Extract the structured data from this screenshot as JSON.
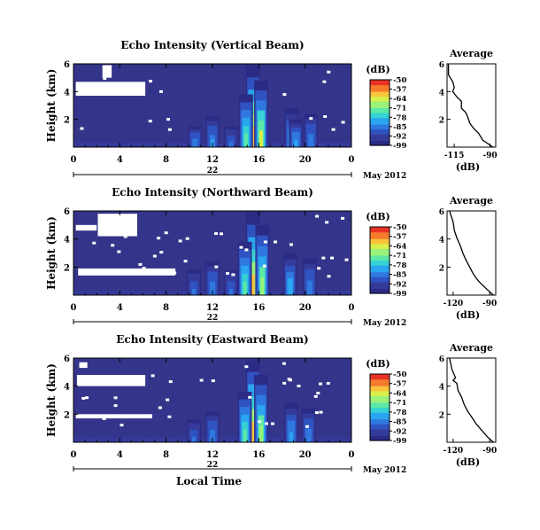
{
  "colors": {
    "background_field": "#34348a",
    "colormap": [
      "#2b2b86",
      "#353b9a",
      "#2f53c0",
      "#2f78df",
      "#2aa5ef",
      "#36d3d4",
      "#5ce8a6",
      "#9af27a",
      "#d9ef4c",
      "#f7c43a",
      "#f47a2c",
      "#e83326"
    ]
  },
  "chart_data": [
    {
      "type": "heatmap",
      "title": "Echo Intensity (Vertical Beam)",
      "ylabel": "Height (km)",
      "yticks": [
        "6",
        "4",
        "2"
      ],
      "ylim": [
        0,
        6
      ],
      "xlim": [
        0,
        24
      ],
      "xticks": [
        "0",
        "4",
        "8",
        "12",
        "16",
        "20",
        "0"
      ],
      "date_ticks": [
        "22"
      ],
      "date_label": "May 2012",
      "colorbar": {
        "unit": "(dB)",
        "ticks": [
          "-50",
          "-57",
          "-64",
          "-71",
          "-78",
          "-85",
          "-92",
          "-99"
        ],
        "range": [
          -99,
          -50
        ]
      },
      "average": {
        "title": "Average",
        "xlabel": "(dB)",
        "xticks": [
          "-115",
          "-90"
        ],
        "xlim": [
          -120,
          -86
        ],
        "yticks": [
          "6",
          "4",
          "2"
        ],
        "profile": [
          [
            -88,
            0
          ],
          [
            -95,
            0.5
          ],
          [
            -98,
            1
          ],
          [
            -101,
            1.3
          ],
          [
            -104,
            1.7
          ],
          [
            -106,
            2.3
          ],
          [
            -107,
            2.5
          ],
          [
            -110,
            2.8
          ],
          [
            -110,
            3.3
          ],
          [
            -113,
            3.6
          ],
          [
            -116,
            4.0
          ],
          [
            -115,
            4.3
          ],
          [
            -116,
            4.7
          ],
          [
            -119,
            5.2
          ],
          [
            -119,
            6
          ]
        ]
      },
      "echo_features": [
        {
          "x": 15.5,
          "intensity": -60,
          "top": 5.9
        },
        {
          "x": 16.2,
          "intensity": -66,
          "top": 4.8
        },
        {
          "x": 14.9,
          "intensity": -72,
          "top": 3.8
        },
        {
          "x": 18.8,
          "intensity": -78,
          "top": 2.8
        },
        {
          "x": 19.2,
          "intensity": -80,
          "top": 2.0
        },
        {
          "x": 12.0,
          "intensity": -82,
          "top": 2.2
        },
        {
          "x": 10.5,
          "intensity": -84,
          "top": 1.5
        },
        {
          "x": 20.5,
          "intensity": -84,
          "top": 2.4
        },
        {
          "x": 13.6,
          "intensity": -86,
          "top": 1.5
        }
      ]
    },
    {
      "type": "heatmap",
      "title": "Echo Intensity (Northward Beam)",
      "ylabel": "Height (km)",
      "yticks": [
        "6",
        "4",
        "2"
      ],
      "ylim": [
        0,
        6
      ],
      "xlim": [
        0,
        24
      ],
      "xticks": [
        "0",
        "4",
        "8",
        "12",
        "16",
        "20",
        "0"
      ],
      "date_ticks": [
        "22"
      ],
      "date_label": "May 2012",
      "colorbar": {
        "unit": "(dB)",
        "ticks": [
          "-50",
          "-57",
          "-64",
          "-71",
          "-78",
          "-85",
          "-92",
          "-99"
        ],
        "range": [
          -99,
          -50
        ]
      },
      "average": {
        "title": "Average",
        "xlabel": "(dB)",
        "xticks": [
          "-120",
          "-90"
        ],
        "xlim": [
          -125,
          -85
        ],
        "yticks": [
          "6",
          "4",
          "2"
        ],
        "profile": [
          [
            -87,
            0
          ],
          [
            -92,
            0.4
          ],
          [
            -98,
            0.9
          ],
          [
            -101,
            1.2
          ],
          [
            -104,
            1.6
          ],
          [
            -107,
            2.1
          ],
          [
            -110,
            2.6
          ],
          [
            -112,
            3.0
          ],
          [
            -114,
            3.5
          ],
          [
            -117,
            4.1
          ],
          [
            -119,
            4.6
          ],
          [
            -120,
            5.2
          ],
          [
            -123,
            6
          ]
        ]
      },
      "echo_features": [
        {
          "x": 15.5,
          "intensity": -62,
          "top": 5.9
        },
        {
          "x": 16.3,
          "intensity": -68,
          "top": 5.0
        },
        {
          "x": 14.8,
          "intensity": -73,
          "top": 3.8
        },
        {
          "x": 18.7,
          "intensity": -79,
          "top": 3.0
        },
        {
          "x": 20.4,
          "intensity": -83,
          "top": 2.6
        },
        {
          "x": 12.0,
          "intensity": -83,
          "top": 2.4
        },
        {
          "x": 10.4,
          "intensity": -85,
          "top": 1.8
        },
        {
          "x": 13.6,
          "intensity": -86,
          "top": 1.8
        }
      ]
    },
    {
      "type": "heatmap",
      "title": "Echo Intensity (Eastward Beam)",
      "ylabel": "Height (km)",
      "yticks": [
        "6",
        "4",
        "2"
      ],
      "ylim": [
        0,
        6
      ],
      "xlim": [
        0,
        24
      ],
      "xticks": [
        "0",
        "4",
        "8",
        "12",
        "16",
        "20",
        "0"
      ],
      "date_ticks": [
        "22"
      ],
      "date_label": "May 2012",
      "xlabel": "Local Time",
      "colorbar": {
        "unit": "(dB)",
        "ticks": [
          "-50",
          "-57",
          "-64",
          "-71",
          "-78",
          "-85",
          "-92",
          "-99"
        ],
        "range": [
          -99,
          -50
        ]
      },
      "average": {
        "title": "Average",
        "xlabel": "(dB)",
        "xticks": [
          "-120",
          "-90"
        ],
        "xlim": [
          -125,
          -85
        ],
        "yticks": [
          "6",
          "4",
          "2"
        ],
        "profile": [
          [
            -87,
            0
          ],
          [
            -92,
            0.4
          ],
          [
            -97,
            0.9
          ],
          [
            -101,
            1.3
          ],
          [
            -104,
            1.7
          ],
          [
            -108,
            2.2
          ],
          [
            -111,
            2.7
          ],
          [
            -113,
            3.2
          ],
          [
            -116,
            3.7
          ],
          [
            -117,
            4.2
          ],
          [
            -120,
            4.4
          ],
          [
            -118,
            4.6
          ],
          [
            -121,
            5.2
          ],
          [
            -123,
            6
          ]
        ]
      },
      "echo_features": [
        {
          "x": 15.5,
          "intensity": -62,
          "top": 5.9
        },
        {
          "x": 16.2,
          "intensity": -68,
          "top": 4.8
        },
        {
          "x": 14.8,
          "intensity": -74,
          "top": 3.6
        },
        {
          "x": 18.8,
          "intensity": -80,
          "top": 2.8
        },
        {
          "x": 20.3,
          "intensity": -84,
          "top": 2.4
        },
        {
          "x": 12.0,
          "intensity": -84,
          "top": 2.2
        },
        {
          "x": 10.4,
          "intensity": -86,
          "top": 1.6
        }
      ]
    }
  ]
}
